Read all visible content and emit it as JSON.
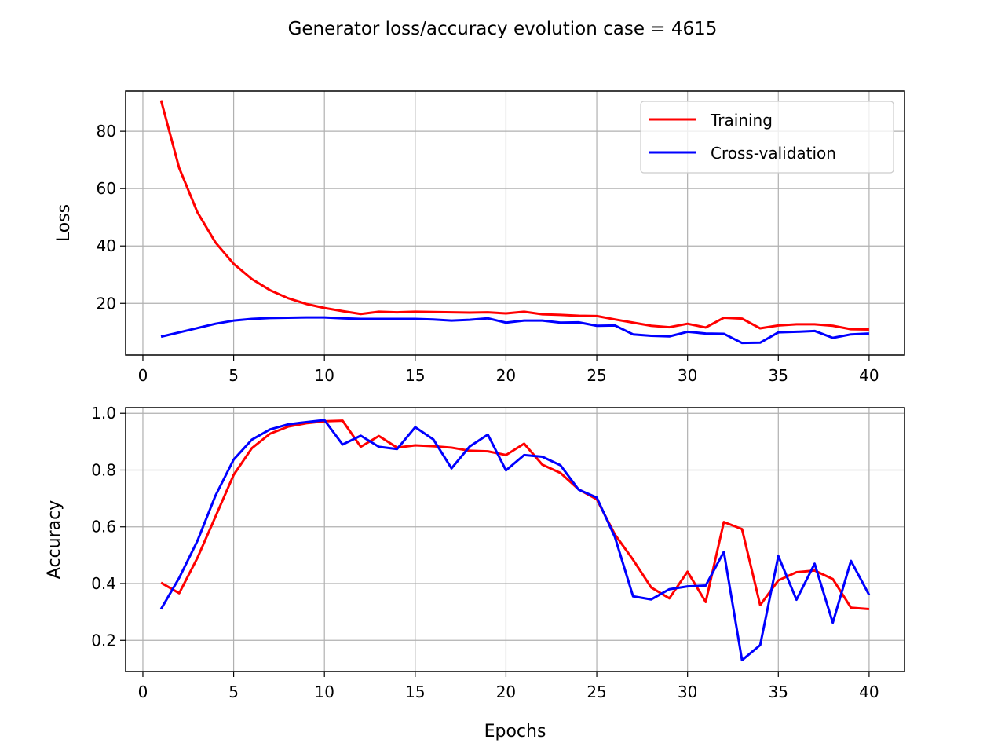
{
  "title": "Generator loss/accuracy evolution case = 4615",
  "legend": {
    "placement": "upper-right",
    "entries": [
      {
        "label": "Training",
        "color": "#ff0000"
      },
      {
        "label": "Cross-validation",
        "color": "#0000ff"
      }
    ]
  },
  "chart_data": [
    {
      "type": "line",
      "ylabel": "Loss",
      "xlabel": "",
      "xlim": [
        -0.95,
        41.95
      ],
      "ylim": [
        2.0,
        94.0
      ],
      "xticks": [
        0,
        5,
        10,
        15,
        20,
        25,
        30,
        35,
        40
      ],
      "yticks": [
        20,
        40,
        60,
        80
      ],
      "grid": true,
      "legend": "upper-right",
      "x": [
        1,
        2,
        3,
        4,
        5,
        6,
        7,
        8,
        9,
        10,
        11,
        12,
        13,
        14,
        15,
        16,
        17,
        18,
        19,
        20,
        21,
        22,
        23,
        24,
        25,
        26,
        27,
        28,
        29,
        30,
        31,
        32,
        33,
        34,
        35,
        36,
        37,
        38,
        39,
        40
      ],
      "series": [
        {
          "name": "Training",
          "color": "#ff0000",
          "values": [
            90.8,
            67.2,
            51.8,
            41.2,
            33.8,
            28.5,
            24.6,
            21.8,
            19.8,
            18.4,
            17.3,
            16.3,
            17.1,
            16.9,
            17.1,
            17.0,
            16.9,
            16.8,
            16.9,
            16.5,
            17.1,
            16.2,
            16.0,
            15.7,
            15.6,
            14.4,
            13.3,
            12.2,
            11.7,
            12.9,
            11.6,
            15.0,
            14.7,
            11.3,
            12.3,
            12.7,
            12.7,
            12.2,
            11.0,
            10.9
          ]
        },
        {
          "name": "Cross-validation",
          "color": "#0000ff",
          "values": [
            8.4,
            9.9,
            11.4,
            12.9,
            14.0,
            14.6,
            14.9,
            15.0,
            15.1,
            15.1,
            14.8,
            14.6,
            14.6,
            14.6,
            14.6,
            14.4,
            14.0,
            14.3,
            14.8,
            13.3,
            14.0,
            14.0,
            13.3,
            13.4,
            12.2,
            12.3,
            9.2,
            8.7,
            8.5,
            10.1,
            9.5,
            9.4,
            6.2,
            6.3,
            9.9,
            10.1,
            10.4,
            8.0,
            9.2,
            9.5
          ]
        }
      ]
    },
    {
      "type": "line",
      "ylabel": "Accuracy",
      "xlabel": "Epochs",
      "xlim": [
        -0.95,
        41.95
      ],
      "ylim": [
        0.09,
        1.02
      ],
      "xticks": [
        0,
        5,
        10,
        15,
        20,
        25,
        30,
        35,
        40
      ],
      "yticks": [
        0.2,
        0.4,
        0.6,
        0.8,
        1.0
      ],
      "ytick_labels": [
        "0.2",
        "0.4",
        "0.6",
        "0.8",
        "1.0"
      ],
      "grid": true,
      "x": [
        1,
        2,
        3,
        4,
        5,
        6,
        7,
        8,
        9,
        10,
        11,
        12,
        13,
        14,
        15,
        16,
        17,
        18,
        19,
        20,
        21,
        22,
        23,
        24,
        25,
        26,
        27,
        28,
        29,
        30,
        31,
        32,
        33,
        34,
        35,
        36,
        37,
        38,
        39,
        40
      ],
      "series": [
        {
          "name": "Training",
          "color": "#ff0000",
          "values": [
            0.403,
            0.366,
            0.49,
            0.636,
            0.783,
            0.877,
            0.928,
            0.953,
            0.965,
            0.972,
            0.974,
            0.882,
            0.92,
            0.879,
            0.887,
            0.884,
            0.879,
            0.868,
            0.866,
            0.853,
            0.893,
            0.819,
            0.79,
            0.732,
            0.697,
            0.573,
            0.484,
            0.386,
            0.348,
            0.442,
            0.335,
            0.617,
            0.592,
            0.324,
            0.411,
            0.44,
            0.446,
            0.416,
            0.315,
            0.31
          ]
        },
        {
          "name": "Cross-validation",
          "color": "#0000ff",
          "values": [
            0.31,
            0.42,
            0.55,
            0.71,
            0.837,
            0.907,
            0.943,
            0.961,
            0.969,
            0.976,
            0.89,
            0.921,
            0.882,
            0.874,
            0.951,
            0.908,
            0.806,
            0.883,
            0.925,
            0.799,
            0.853,
            0.847,
            0.817,
            0.731,
            0.703,
            0.564,
            0.355,
            0.344,
            0.38,
            0.39,
            0.393,
            0.512,
            0.13,
            0.183,
            0.497,
            0.343,
            0.47,
            0.262,
            0.48,
            0.36
          ]
        }
      ]
    }
  ]
}
